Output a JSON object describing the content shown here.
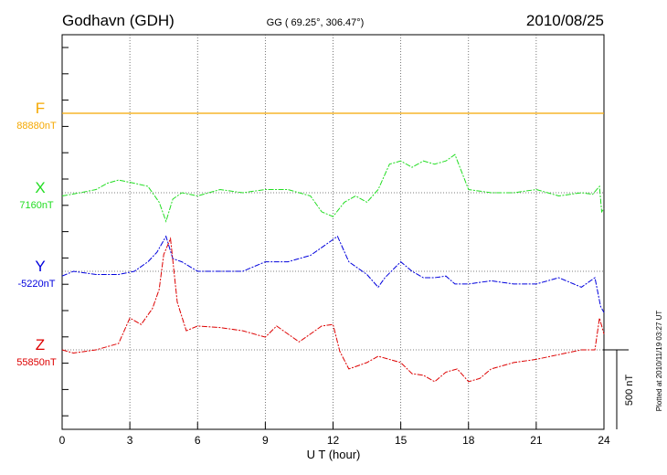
{
  "header": {
    "station": "Godhavn (GDH)",
    "coords": "GG ( 69.25°, 306.47°)",
    "date": "2010/08/25"
  },
  "footer": {
    "xlabel": "U T (hour)",
    "plotted": "Plotted at 2010/11/19 03:27  UT",
    "scale_label": "500 nT"
  },
  "chart_data": {
    "type": "line",
    "x_ticks": [
      0,
      3,
      6,
      9,
      12,
      15,
      18,
      21,
      24
    ],
    "x_tick_labels": [
      "0",
      "3",
      "6",
      "9",
      "12",
      "15",
      "18",
      "21",
      "24"
    ],
    "xlim": [
      0,
      24
    ],
    "scale_bar_nT": 500,
    "series": [
      {
        "name": "F",
        "baseline_label": "88880nT",
        "color": "#f5a800",
        "points": [
          [
            0,
            0
          ],
          [
            24,
            0
          ]
        ]
      },
      {
        "name": "X",
        "baseline_label": "7160nT",
        "color": "#22dd22",
        "points": [
          [
            0,
            -20
          ],
          [
            0.8,
            0
          ],
          [
            1.5,
            20
          ],
          [
            2,
            60
          ],
          [
            2.5,
            80
          ],
          [
            3.2,
            60
          ],
          [
            3.8,
            40
          ],
          [
            4.3,
            -60
          ],
          [
            4.6,
            -180
          ],
          [
            4.9,
            -40
          ],
          [
            5.3,
            0
          ],
          [
            6,
            -20
          ],
          [
            7,
            20
          ],
          [
            8,
            0
          ],
          [
            9,
            20
          ],
          [
            10,
            20
          ],
          [
            11,
            -20
          ],
          [
            11.5,
            -120
          ],
          [
            12,
            -150
          ],
          [
            12.5,
            -60
          ],
          [
            13,
            -20
          ],
          [
            13.5,
            -60
          ],
          [
            14,
            20
          ],
          [
            14.5,
            180
          ],
          [
            15,
            200
          ],
          [
            15.5,
            160
          ],
          [
            16,
            200
          ],
          [
            16.5,
            180
          ],
          [
            17,
            200
          ],
          [
            17.4,
            240
          ],
          [
            18,
            20
          ],
          [
            19,
            0
          ],
          [
            20,
            0
          ],
          [
            21,
            20
          ],
          [
            22,
            -20
          ],
          [
            23,
            0
          ],
          [
            23.5,
            -10
          ],
          [
            23.8,
            40
          ],
          [
            23.9,
            -120
          ],
          [
            24,
            -100
          ]
        ]
      },
      {
        "name": "Y",
        "baseline_label": "-5220nT",
        "color": "#0000dd",
        "points": [
          [
            0,
            -30
          ],
          [
            0.5,
            0
          ],
          [
            1.5,
            -20
          ],
          [
            2.5,
            -20
          ],
          [
            3.2,
            0
          ],
          [
            3.8,
            60
          ],
          [
            4.2,
            120
          ],
          [
            4.6,
            220
          ],
          [
            4.9,
            80
          ],
          [
            5.3,
            60
          ],
          [
            6,
            0
          ],
          [
            7,
            0
          ],
          [
            8,
            0
          ],
          [
            9,
            60
          ],
          [
            10,
            60
          ],
          [
            11,
            100
          ],
          [
            11.6,
            160
          ],
          [
            12.2,
            220
          ],
          [
            12.7,
            60
          ],
          [
            13.5,
            -20
          ],
          [
            14,
            -100
          ],
          [
            14.3,
            -40
          ],
          [
            15,
            60
          ],
          [
            15.5,
            0
          ],
          [
            16,
            -40
          ],
          [
            16.5,
            -40
          ],
          [
            17,
            -30
          ],
          [
            17.4,
            -80
          ],
          [
            18,
            -80
          ],
          [
            19,
            -60
          ],
          [
            20,
            -80
          ],
          [
            21,
            -80
          ],
          [
            22,
            -40
          ],
          [
            23,
            -100
          ],
          [
            23.6,
            -40
          ],
          [
            23.85,
            -220
          ],
          [
            24,
            -260
          ]
        ]
      },
      {
        "name": "Z",
        "baseline_label": "55850nT",
        "color": "#dd0000",
        "points": [
          [
            0,
            0
          ],
          [
            0.5,
            -20
          ],
          [
            1.5,
            0
          ],
          [
            2.5,
            40
          ],
          [
            3,
            200
          ],
          [
            3.5,
            160
          ],
          [
            4,
            260
          ],
          [
            4.3,
            380
          ],
          [
            4.5,
            600
          ],
          [
            4.8,
            700
          ],
          [
            5.1,
            300
          ],
          [
            5.5,
            120
          ],
          [
            6,
            150
          ],
          [
            7,
            140
          ],
          [
            8,
            120
          ],
          [
            9,
            80
          ],
          [
            9.5,
            150
          ],
          [
            10,
            100
          ],
          [
            10.5,
            50
          ],
          [
            11,
            100
          ],
          [
            11.5,
            150
          ],
          [
            12,
            160
          ],
          [
            12.3,
            -10
          ],
          [
            12.7,
            -120
          ],
          [
            13.5,
            -80
          ],
          [
            14,
            -40
          ],
          [
            15,
            -80
          ],
          [
            15.5,
            -150
          ],
          [
            16,
            -160
          ],
          [
            16.5,
            -200
          ],
          [
            17,
            -140
          ],
          [
            17.5,
            -120
          ],
          [
            18,
            -200
          ],
          [
            18.5,
            -180
          ],
          [
            19,
            -120
          ],
          [
            20,
            -80
          ],
          [
            21,
            -60
          ],
          [
            22,
            -30
          ],
          [
            23,
            0
          ],
          [
            23.6,
            0
          ],
          [
            23.8,
            200
          ],
          [
            24,
            100
          ]
        ]
      }
    ]
  }
}
